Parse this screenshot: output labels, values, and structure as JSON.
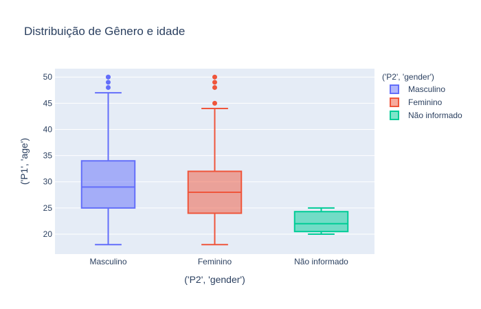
{
  "chart_data": {
    "type": "box",
    "title": "Distribuição de Gênero e idade",
    "xlabel": "('P2', 'gender')",
    "ylabel": "('P1', 'age')",
    "ylim": [
      16.2,
      51.6
    ],
    "yticks": [
      20,
      25,
      30,
      35,
      40,
      45,
      50
    ],
    "categories": [
      "Masculino",
      "Feminino",
      "Não informado"
    ],
    "grid": true,
    "legend_position": "top-right",
    "legend_title": "('P2', 'gender')",
    "series": [
      {
        "name": "Masculino",
        "color": "#636efa",
        "fill": "rgba(99,110,250,0.5)",
        "min": 18,
        "q1": 25,
        "median": 29,
        "q3": 34,
        "max": 47,
        "outliers": [
          48,
          49,
          50,
          50
        ]
      },
      {
        "name": "Feminino",
        "color": "#ef553b",
        "fill": "rgba(239,85,59,0.5)",
        "min": 18,
        "q1": 24,
        "median": 28,
        "q3": 32,
        "max": 44,
        "outliers": [
          45,
          48,
          49,
          50
        ]
      },
      {
        "name": "Não informado",
        "color": "#00cc96",
        "fill": "rgba(0,204,150,0.5)",
        "min": 20,
        "q1": 20.5,
        "median": 22,
        "q3": 24.3,
        "max": 25,
        "outliers": []
      }
    ]
  }
}
